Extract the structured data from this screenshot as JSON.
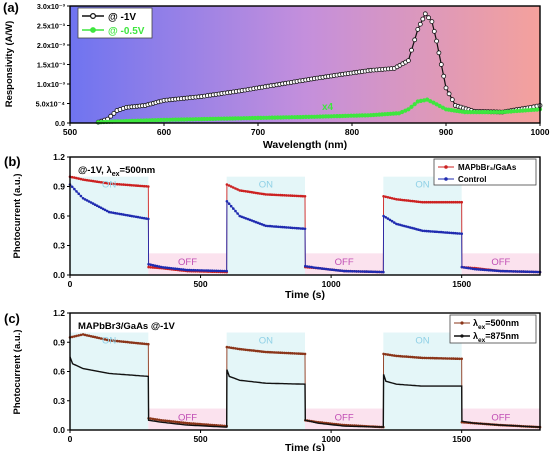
{
  "colors": {
    "a_bg_start": "#6f74f0",
    "a_bg_mid": "#c48fdc",
    "a_bg_end": "#f4a19c",
    "on_shade": "#e4f6f8",
    "off_shade": "#fbe2ee",
    "on_text": "#8fd0e6",
    "off_text": "#c04db4",
    "red": "#cc2020",
    "blue": "#1f2bb0",
    "brown": "#8a3418",
    "black": "#111111",
    "green": "#3ee63e"
  },
  "panels": {
    "a": {
      "letter": "(a)"
    },
    "b": {
      "letter": "(b)"
    },
    "c": {
      "letter": "(c)"
    }
  },
  "chart_data": [
    {
      "id": "a",
      "type": "line",
      "xlabel": "Wavelength (nm)",
      "ylabel": "Responsivity (A/W)",
      "xlim": [
        500,
        1000
      ],
      "ylim": [
        0,
        0.003
      ],
      "xticks": [
        500,
        600,
        700,
        800,
        900,
        1000
      ],
      "yticks": [
        0,
        0.0005,
        0.001,
        0.0015,
        0.002,
        0.0025,
        0.003
      ],
      "ytick_labels": [
        "0.0",
        "5.0x10⁻⁴",
        "1.0x10⁻³",
        "1.5x10⁻³",
        "2.0x10⁻³",
        "2.5x10⁻³",
        "3.0x10⁻³"
      ],
      "legend_position": "top-left",
      "annotation": "x4",
      "series": [
        {
          "name": "@ -1V",
          "x": [
            530,
            540,
            550,
            560,
            580,
            600,
            640,
            680,
            720,
            760,
            790,
            820,
            845,
            860,
            870,
            878,
            885,
            890,
            895,
            900,
            910,
            930,
            960,
            990,
            1000
          ],
          "y": [
            2e-05,
            0.0001,
            0.00032,
            0.0004,
            0.00045,
            0.00058,
            0.00068,
            0.00082,
            0.00098,
            0.00114,
            0.00125,
            0.00135,
            0.0014,
            0.0016,
            0.0024,
            0.0028,
            0.0026,
            0.0021,
            0.0015,
            0.0009,
            0.00045,
            0.0003,
            0.00028,
            0.0004,
            0.00045
          ]
        },
        {
          "name": "@ -0.5V",
          "x": [
            530,
            560,
            600,
            640,
            700,
            760,
            820,
            850,
            860,
            870,
            880,
            890,
            900,
            920,
            960,
            1000
          ],
          "y": [
            2e-05,
            5e-05,
            8e-05,
            0.0001,
            0.00013,
            0.00016,
            0.0002,
            0.00025,
            0.00035,
            0.00055,
            0.0006,
            0.00048,
            0.00035,
            0.00028,
            0.00028,
            0.00035
          ]
        }
      ]
    },
    {
      "id": "b",
      "type": "line",
      "xlabel": "Time (s)",
      "ylabel": "Photocurrent (a.u.)",
      "condition": "@-1V, λ",
      "condition_sub": "ex",
      "condition_tail": "=500nm",
      "xlim": [
        0,
        1800
      ],
      "ylim": [
        0,
        1.2
      ],
      "xticks": [
        0,
        500,
        1000,
        1500
      ],
      "yticks": [
        0,
        0.3,
        0.6,
        0.9,
        1.2
      ],
      "ytick_labels": [
        "0.0",
        "0.3",
        "0.6",
        "0.9",
        "1.2"
      ],
      "on_label": "ON",
      "off_label": "OFF",
      "on_windows": [
        [
          0,
          300
        ],
        [
          600,
          900
        ],
        [
          1200,
          1500
        ]
      ],
      "off_windows": [
        [
          300,
          600
        ],
        [
          900,
          1200
        ],
        [
          1500,
          1800
        ]
      ],
      "legend_position": "top-right",
      "series": [
        {
          "name": "MAPbBr₃/GaAs",
          "x": [
            0,
            50,
            150,
            300,
            301,
            350,
            450,
            600,
            601,
            650,
            750,
            900,
            901,
            950,
            1050,
            1200,
            1201,
            1250,
            1350,
            1500,
            1501,
            1550,
            1650,
            1800
          ],
          "y": [
            1.0,
            0.97,
            0.93,
            0.9,
            0.08,
            0.07,
            0.04,
            0.03,
            0.92,
            0.86,
            0.82,
            0.8,
            0.08,
            0.07,
            0.04,
            0.03,
            0.8,
            0.77,
            0.74,
            0.74,
            0.08,
            0.07,
            0.04,
            0.03
          ]
        },
        {
          "name": "Control",
          "x": [
            0,
            50,
            150,
            300,
            301,
            350,
            450,
            600,
            601,
            650,
            750,
            900,
            901,
            950,
            1050,
            1200,
            1201,
            1250,
            1350,
            1500,
            1501,
            1550,
            1650,
            1800
          ],
          "y": [
            0.92,
            0.78,
            0.64,
            0.57,
            0.11,
            0.08,
            0.05,
            0.04,
            0.75,
            0.6,
            0.5,
            0.47,
            0.09,
            0.07,
            0.04,
            0.03,
            0.6,
            0.52,
            0.45,
            0.42,
            0.08,
            0.06,
            0.04,
            0.03
          ]
        }
      ]
    },
    {
      "id": "c",
      "type": "line",
      "xlabel": "Time (s)",
      "ylabel": "Photocurrent (a.u.)",
      "condition": "MAPbBr3/GaAs @-1V",
      "xlim": [
        0,
        1800
      ],
      "ylim": [
        0,
        1.2
      ],
      "xticks": [
        0,
        500,
        1000,
        1500
      ],
      "yticks": [
        0,
        0.3,
        0.6,
        0.9,
        1.2
      ],
      "ytick_labels": [
        "0.0",
        "0.3",
        "0.6",
        "0.9",
        "1.2"
      ],
      "on_label": "ON",
      "off_label": "OFF",
      "on_windows": [
        [
          0,
          300
        ],
        [
          600,
          900
        ],
        [
          1200,
          1500
        ]
      ],
      "off_windows": [
        [
          300,
          600
        ],
        [
          900,
          1200
        ],
        [
          1500,
          1800
        ]
      ],
      "legend_position": "top-right",
      "series": [
        {
          "name": "λ",
          "name_sub": "ex",
          "name_tail": "=500nm",
          "x": [
            0,
            50,
            150,
            300,
            301,
            350,
            450,
            600,
            601,
            650,
            750,
            900,
            901,
            950,
            1050,
            1200,
            1201,
            1250,
            1350,
            1500,
            1501,
            1550,
            1650,
            1800
          ],
          "y": [
            0.95,
            0.98,
            0.92,
            0.88,
            0.12,
            0.1,
            0.07,
            0.04,
            0.85,
            0.83,
            0.8,
            0.78,
            0.1,
            0.08,
            0.05,
            0.03,
            0.78,
            0.76,
            0.74,
            0.73,
            0.08,
            0.07,
            0.05,
            0.03
          ]
        },
        {
          "name": "λ",
          "name_sub": "ex",
          "name_tail": "=875nm",
          "x": [
            0,
            10,
            50,
            150,
            300,
            301,
            350,
            450,
            600,
            601,
            610,
            650,
            750,
            900,
            901,
            950,
            1050,
            1200,
            1201,
            1210,
            1250,
            1350,
            1500,
            1501,
            1550,
            1650,
            1800
          ],
          "y": [
            0.75,
            0.68,
            0.63,
            0.58,
            0.55,
            0.1,
            0.08,
            0.05,
            0.03,
            0.62,
            0.55,
            0.51,
            0.48,
            0.47,
            0.1,
            0.07,
            0.04,
            0.03,
            0.57,
            0.5,
            0.47,
            0.45,
            0.45,
            0.09,
            0.07,
            0.05,
            0.03
          ]
        }
      ]
    }
  ]
}
